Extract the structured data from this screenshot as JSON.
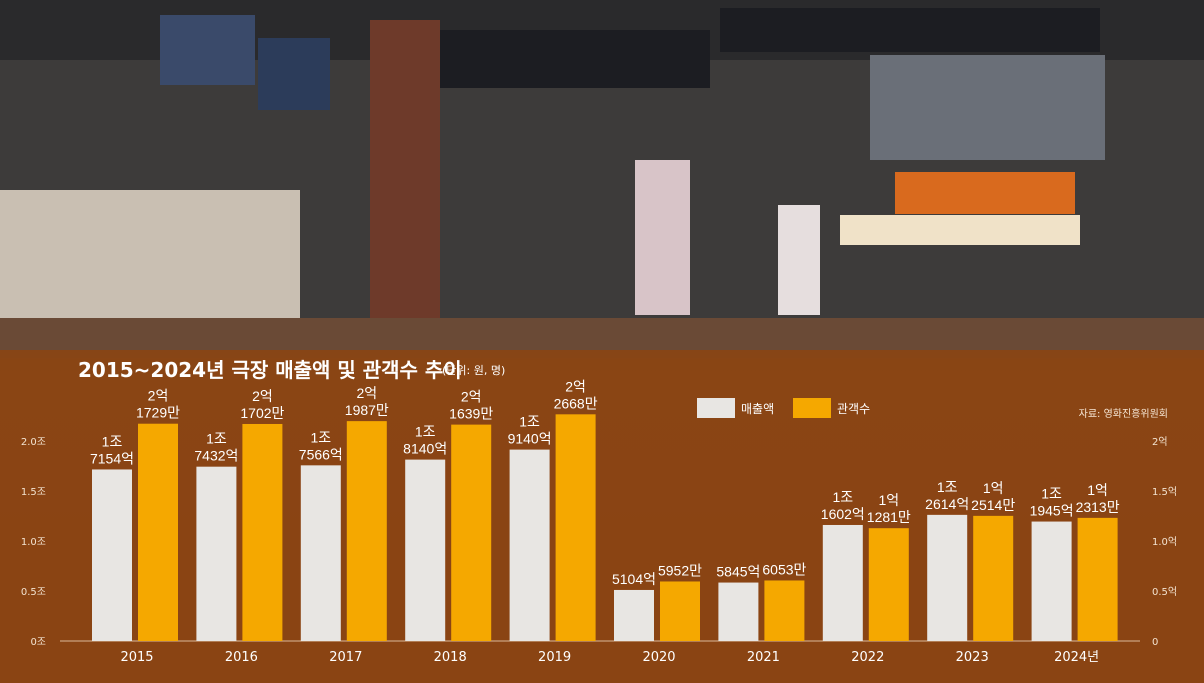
{
  "chart_data": {
    "type": "bar",
    "title": "2015~2024년 극장 매출액 및 관객수 추이",
    "unit_note": "(단위: 원, 명)",
    "source": "자료: 영화진흥위원회",
    "categories": [
      "2015",
      "2016",
      "2017",
      "2018",
      "2019",
      "2020",
      "2021",
      "2022",
      "2023",
      "2024년"
    ],
    "series": [
      {
        "name": "매출액",
        "color": "#e8e6e3",
        "axis": "left",
        "values": [
          17154,
          17432,
          17566,
          18140,
          19140,
          5104,
          5845,
          11602,
          12614,
          11945
        ],
        "labels": [
          [
            "1조",
            "7154억"
          ],
          [
            "1조",
            "7432억"
          ],
          [
            "1조",
            "7566억"
          ],
          [
            "1조",
            "8140억"
          ],
          [
            "1조",
            "9140억"
          ],
          [
            "5104억"
          ],
          [
            "5845억"
          ],
          [
            "1조",
            "1602억"
          ],
          [
            "1조",
            "2614억"
          ],
          [
            "1조",
            "1945억"
          ]
        ]
      },
      {
        "name": "관객수",
        "color": "#f5a800",
        "axis": "right",
        "values": [
          21729,
          21702,
          21987,
          21639,
          22668,
          5952,
          6053,
          11281,
          12514,
          12313
        ],
        "labels": [
          [
            "2억",
            "1729만"
          ],
          [
            "2억",
            "1702만"
          ],
          [
            "2억",
            "1987만"
          ],
          [
            "2억",
            "1639만"
          ],
          [
            "2억",
            "2668만"
          ],
          [
            "5952만"
          ],
          [
            "6053만"
          ],
          [
            "1억",
            "1281만"
          ],
          [
            "1억",
            "2514만"
          ],
          [
            "1억",
            "2313만"
          ]
        ]
      }
    ],
    "y_left": {
      "range": [
        0,
        2.0
      ],
      "ticks": [
        "0조",
        "0.5조",
        "1.0조",
        "1.5조",
        "2.0조"
      ]
    },
    "y_right": {
      "range": [
        0,
        2.0
      ],
      "ticks": [
        "0",
        "0.5억",
        "1.0억",
        "1.5억",
        "2억"
      ]
    },
    "legend_position": "top-right",
    "grid": false
  }
}
